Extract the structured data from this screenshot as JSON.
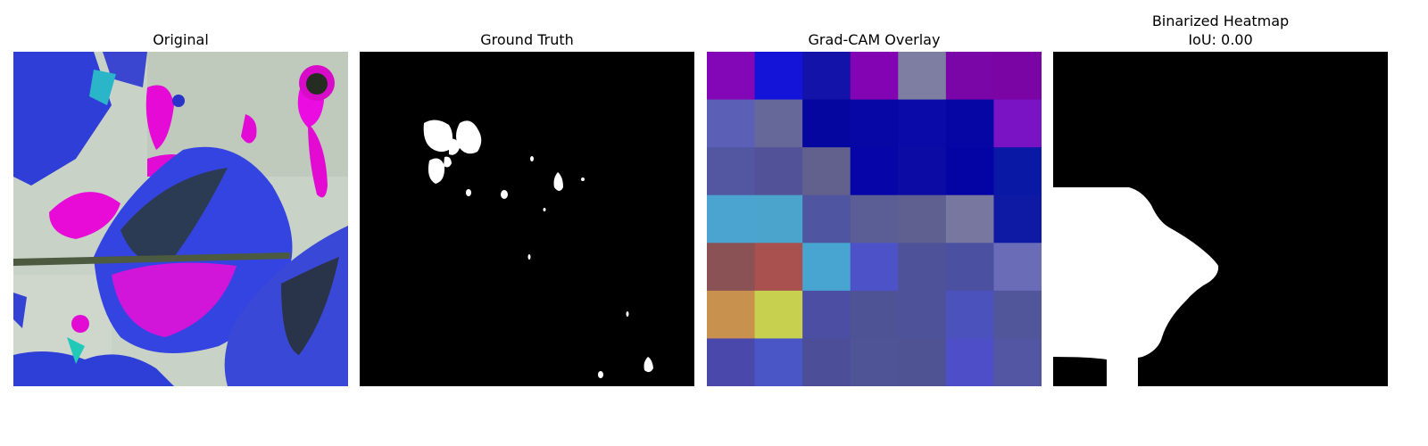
{
  "panels": [
    {
      "title": "Original",
      "subtitle": "",
      "image": "leaf-photo"
    },
    {
      "title": "Ground Truth",
      "subtitle": "",
      "image": "binary-mask"
    },
    {
      "title": "Grad-CAM Overlay",
      "subtitle": "",
      "image": "heatmap-grid"
    },
    {
      "title": "Binarized Heatmap",
      "subtitle": "IoU: 0.00",
      "image": "binarized-heatmap"
    }
  ],
  "gradcam_grid": {
    "rows": 7,
    "cols": 7,
    "colors": [
      [
        "#8306b7",
        "#1414d8",
        "#1313aa",
        "#8304b3",
        "#7e7ea3",
        "#7a06a8",
        "#7a04a4"
      ],
      [
        "#5c5fb6",
        "#66689a",
        "#0505a0",
        "#0707a6",
        "#0a0aa8",
        "#0606a4",
        "#7a13c4"
      ],
      [
        "#5356a0",
        "#525299",
        "#62618e",
        "#0606a8",
        "#0c0ca4",
        "#0404a4",
        "#0a18a6"
      ],
      [
        "#4ba4cf",
        "#4aa4cc",
        "#4f55a0",
        "#5b5e94",
        "#5f6090",
        "#7777a0",
        "#0e1aa4"
      ],
      [
        "#8a5255",
        "#a8514f",
        "#48a4d0",
        "#4e52c8",
        "#4e5298",
        "#4c50a0",
        "#6a6cb8"
      ],
      [
        "#c8924e",
        "#c8d050",
        "#4b4ea2",
        "#4e5396",
        "#4e5298",
        "#4c52bc",
        "#51559a"
      ],
      [
        "#4a48aa",
        "#4a55c6",
        "#4c4f98",
        "#4e5496",
        "#4f5394",
        "#4e4ec8",
        "#5356a2"
      ]
    ]
  }
}
